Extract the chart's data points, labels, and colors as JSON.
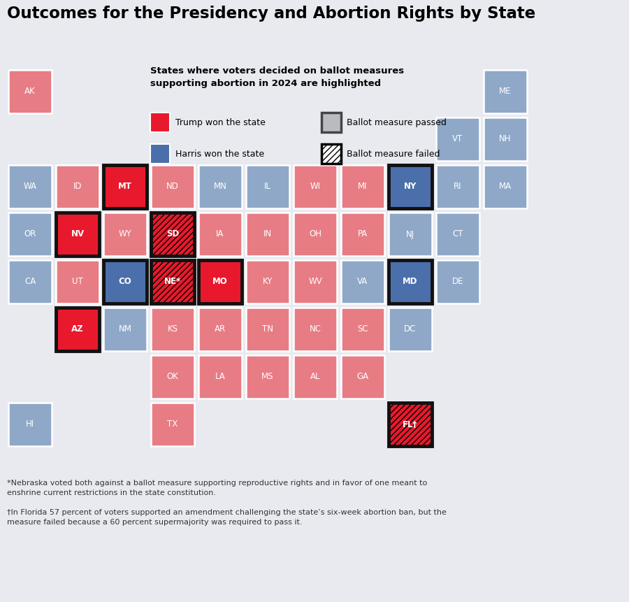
{
  "title": "Outcomes for the Presidency and Abortion Rights by State",
  "background_color": "#e8eaf0",
  "subtitle_line1": "States where voters decided on ballot measures",
  "subtitle_line2": "supporting abortion in 2024 are highlighted",
  "footnote1": "*Nebraska voted both against a ballot measure supporting reproductive rights and in favor of one meant to",
  "footnote1b": "enshrine current restrictions in the state constitution.",
  "footnote2": "†In Florida 57 percent of voters supported an amendment challenging the state’s six-week abortion ban, but the",
  "footnote2b": "measure failed because a 60 percent supermajority was required to pass it.",
  "trump_color": "#e87c84",
  "trump_bold_color": "#e8192c",
  "harris_color": "#8fa8c8",
  "harris_bold_color": "#4a6faa",
  "states": [
    {
      "abbr": "AK",
      "col": 0,
      "row": 1,
      "party": "trump",
      "ballot": null
    },
    {
      "abbr": "ME",
      "col": 10,
      "row": 1,
      "party": "harris",
      "ballot": null
    },
    {
      "abbr": "VT",
      "col": 9,
      "row": 2,
      "party": "harris",
      "ballot": null
    },
    {
      "abbr": "NH",
      "col": 10,
      "row": 2,
      "party": "harris",
      "ballot": null
    },
    {
      "abbr": "WA",
      "col": 0,
      "row": 3,
      "party": "harris",
      "ballot": null
    },
    {
      "abbr": "ID",
      "col": 1,
      "row": 3,
      "party": "trump",
      "ballot": null
    },
    {
      "abbr": "MT",
      "col": 2,
      "row": 3,
      "party": "trump",
      "ballot": "passed"
    },
    {
      "abbr": "ND",
      "col": 3,
      "row": 3,
      "party": "trump",
      "ballot": null
    },
    {
      "abbr": "MN",
      "col": 4,
      "row": 3,
      "party": "harris",
      "ballot": null
    },
    {
      "abbr": "IL",
      "col": 5,
      "row": 3,
      "party": "harris",
      "ballot": null
    },
    {
      "abbr": "WI",
      "col": 6,
      "row": 3,
      "party": "trump",
      "ballot": null
    },
    {
      "abbr": "MI",
      "col": 7,
      "row": 3,
      "party": "trump",
      "ballot": null
    },
    {
      "abbr": "NY",
      "col": 8,
      "row": 3,
      "party": "harris",
      "ballot": "passed"
    },
    {
      "abbr": "RI",
      "col": 9,
      "row": 3,
      "party": "harris",
      "ballot": null
    },
    {
      "abbr": "MA",
      "col": 10,
      "row": 3,
      "party": "harris",
      "ballot": null
    },
    {
      "abbr": "OR",
      "col": 0,
      "row": 4,
      "party": "harris",
      "ballot": null
    },
    {
      "abbr": "NV",
      "col": 1,
      "row": 4,
      "party": "trump",
      "ballot": "passed"
    },
    {
      "abbr": "WY",
      "col": 2,
      "row": 4,
      "party": "trump",
      "ballot": null
    },
    {
      "abbr": "SD",
      "col": 3,
      "row": 4,
      "party": "trump",
      "ballot": "failed"
    },
    {
      "abbr": "IA",
      "col": 4,
      "row": 4,
      "party": "trump",
      "ballot": null
    },
    {
      "abbr": "IN",
      "col": 5,
      "row": 4,
      "party": "trump",
      "ballot": null
    },
    {
      "abbr": "OH",
      "col": 6,
      "row": 4,
      "party": "trump",
      "ballot": null
    },
    {
      "abbr": "PA",
      "col": 7,
      "row": 4,
      "party": "trump",
      "ballot": null
    },
    {
      "abbr": "NJ",
      "col": 8,
      "row": 4,
      "party": "harris",
      "ballot": null
    },
    {
      "abbr": "CT",
      "col": 9,
      "row": 4,
      "party": "harris",
      "ballot": null
    },
    {
      "abbr": "CA",
      "col": 0,
      "row": 5,
      "party": "harris",
      "ballot": null
    },
    {
      "abbr": "UT",
      "col": 1,
      "row": 5,
      "party": "trump",
      "ballot": null
    },
    {
      "abbr": "CO",
      "col": 2,
      "row": 5,
      "party": "harris",
      "ballot": "passed"
    },
    {
      "abbr": "NE*",
      "col": 3,
      "row": 5,
      "party": "trump",
      "ballot": "failed"
    },
    {
      "abbr": "MO",
      "col": 4,
      "row": 5,
      "party": "trump",
      "ballot": "passed"
    },
    {
      "abbr": "KY",
      "col": 5,
      "row": 5,
      "party": "trump",
      "ballot": null
    },
    {
      "abbr": "WV",
      "col": 6,
      "row": 5,
      "party": "trump",
      "ballot": null
    },
    {
      "abbr": "VA",
      "col": 7,
      "row": 5,
      "party": "harris",
      "ballot": null
    },
    {
      "abbr": "MD",
      "col": 8,
      "row": 5,
      "party": "harris",
      "ballot": "passed"
    },
    {
      "abbr": "DE",
      "col": 9,
      "row": 5,
      "party": "harris",
      "ballot": null
    },
    {
      "abbr": "AZ",
      "col": 1,
      "row": 6,
      "party": "trump",
      "ballot": "passed"
    },
    {
      "abbr": "NM",
      "col": 2,
      "row": 6,
      "party": "harris",
      "ballot": null
    },
    {
      "abbr": "KS",
      "col": 3,
      "row": 6,
      "party": "trump",
      "ballot": null
    },
    {
      "abbr": "AR",
      "col": 4,
      "row": 6,
      "party": "trump",
      "ballot": null
    },
    {
      "abbr": "TN",
      "col": 5,
      "row": 6,
      "party": "trump",
      "ballot": null
    },
    {
      "abbr": "NC",
      "col": 6,
      "row": 6,
      "party": "trump",
      "ballot": null
    },
    {
      "abbr": "SC",
      "col": 7,
      "row": 6,
      "party": "trump",
      "ballot": null
    },
    {
      "abbr": "DC",
      "col": 8,
      "row": 6,
      "party": "harris",
      "ballot": null
    },
    {
      "abbr": "OK",
      "col": 3,
      "row": 7,
      "party": "trump",
      "ballot": null
    },
    {
      "abbr": "LA",
      "col": 4,
      "row": 7,
      "party": "trump",
      "ballot": null
    },
    {
      "abbr": "MS",
      "col": 5,
      "row": 7,
      "party": "trump",
      "ballot": null
    },
    {
      "abbr": "AL",
      "col": 6,
      "row": 7,
      "party": "trump",
      "ballot": null
    },
    {
      "abbr": "GA",
      "col": 7,
      "row": 7,
      "party": "trump",
      "ballot": null
    },
    {
      "abbr": "HI",
      "col": 0,
      "row": 8,
      "party": "harris",
      "ballot": null
    },
    {
      "abbr": "TX",
      "col": 3,
      "row": 8,
      "party": "trump",
      "ballot": null
    },
    {
      "abbr": "FL†",
      "col": 8,
      "row": 8,
      "party": "trump",
      "ballot": "failed"
    }
  ]
}
